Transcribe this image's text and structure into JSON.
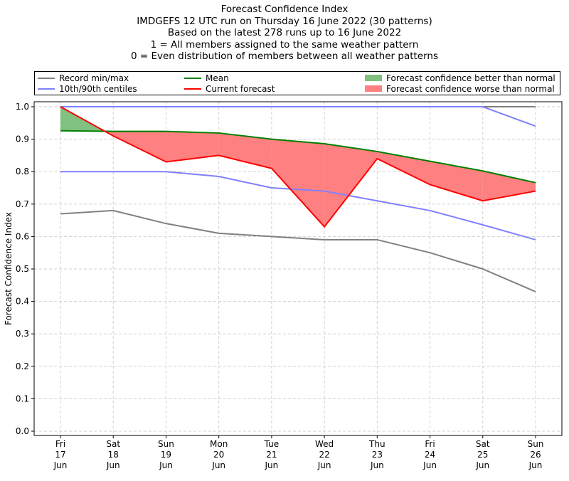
{
  "title_lines": [
    "Forecast Confidence Index",
    "IMDGEFS 12 UTC run on Thursday 16 June 2022 (30 patterns)",
    "Based on the latest 278 runs up to 16 June 2022",
    "1 = All members assigned to the same weather pattern",
    "0 = Even distribution of members between all weather patterns"
  ],
  "legend": [
    {
      "label": "Record min/max",
      "color": "#808080",
      "kind": "line"
    },
    {
      "label": "Mean",
      "color": "#008000",
      "kind": "line"
    },
    {
      "label": "Forecast confidence better than normal",
      "color": "#80c080",
      "kind": "patch"
    },
    {
      "label": "10th/90th centiles",
      "color": "#8080ff",
      "kind": "line"
    },
    {
      "label": "Current forecast",
      "color": "#ff0000",
      "kind": "line"
    },
    {
      "label": "Forecast confidence worse than normal",
      "color": "#ff8080",
      "kind": "patch"
    }
  ],
  "chart_data": {
    "type": "line",
    "ylabel": "Forecast Confidence Index",
    "xlabel": "",
    "ylim": [
      0,
      1.0
    ],
    "yticks": [
      "0.0",
      "0.1",
      "0.2",
      "0.3",
      "0.4",
      "0.5",
      "0.6",
      "0.7",
      "0.8",
      "0.9",
      "1.0"
    ],
    "grid": true,
    "legend_position": "top",
    "categories": [
      [
        "Fri",
        "17",
        "Jun"
      ],
      [
        "Sat",
        "18",
        "Jun"
      ],
      [
        "Sun",
        "19",
        "Jun"
      ],
      [
        "Mon",
        "20",
        "Jun"
      ],
      [
        "Tue",
        "21",
        "Jun"
      ],
      [
        "Wed",
        "22",
        "Jun"
      ],
      [
        "Thu",
        "23",
        "Jun"
      ],
      [
        "Fri",
        "24",
        "Jun"
      ],
      [
        "Sat",
        "25",
        "Jun"
      ],
      [
        "Sun",
        "26",
        "Jun"
      ]
    ],
    "series": [
      {
        "name": "Record min/max",
        "color": "#808080",
        "values": [
          0.67,
          0.68,
          0.64,
          0.61,
          0.6,
          0.59,
          0.59,
          0.55,
          0.5,
          0.43
        ]
      },
      {
        "name": "Record min/max",
        "color": "#808080",
        "values": [
          1,
          1,
          1,
          1,
          1,
          1,
          1,
          1,
          1,
          1
        ]
      },
      {
        "name": "10th/90th centiles",
        "color": "#8080ff",
        "values": [
          0.8,
          0.8,
          0.8,
          0.785,
          0.75,
          0.74,
          0.71,
          0.68,
          0.636,
          0.59
        ]
      },
      {
        "name": "10th/90th centiles",
        "color": "#8080ff",
        "values": [
          1,
          1,
          1,
          1,
          1,
          1,
          1,
          1,
          1,
          0.94
        ]
      },
      {
        "name": "Mean",
        "color": "#008000",
        "values": [
          0.926,
          0.924,
          0.924,
          0.919,
          0.9,
          0.886,
          0.862,
          0.832,
          0.802,
          0.766
        ]
      },
      {
        "name": "Current forecast",
        "color": "#ff0000",
        "values": [
          1.0,
          0.91,
          0.83,
          0.85,
          0.81,
          0.63,
          0.84,
          0.76,
          0.71,
          0.74
        ]
      }
    ]
  }
}
